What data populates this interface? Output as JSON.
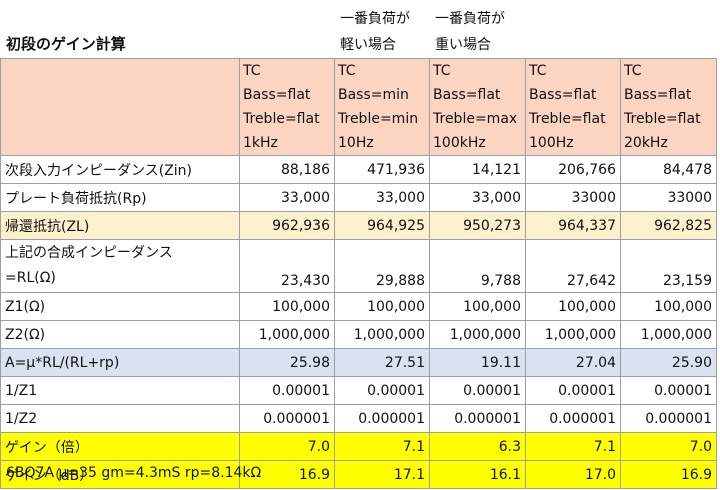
{
  "title": "初段のゲイン計算",
  "notes": [
    {
      "line1": "一番負荷が",
      "line2": "軽い場合"
    },
    {
      "line1": "一番負荷が",
      "line2": "重い場合"
    }
  ],
  "columns": [
    {
      "l1": "TC",
      "l2": " Bass=flat",
      "l3": "Treble=flat",
      "l4": "1kHz"
    },
    {
      "l1": "TC",
      "l2": " Bass=min",
      "l3": "Treble=min",
      "l4": "10Hz"
    },
    {
      "l1": "TC",
      "l2": " Bass=flat",
      "l3": "Treble=max",
      "l4": "100kHz"
    },
    {
      "l1": "TC",
      "l2": " Bass=flat",
      "l3": "Treble=flat",
      "l4": "100Hz"
    },
    {
      "l1": "TC",
      "l2": " Bass=flat",
      "l3": "Treble=flat",
      "l4": "20kHz"
    }
  ],
  "rows": {
    "zin": {
      "label": "次段入力インピーダンス(Zin)",
      "values": [
        "88,186",
        "471,936",
        "14,121",
        "206,766",
        "84,478"
      ]
    },
    "rp": {
      "label": "プレート負荷抵抗(Rp)",
      "values": [
        "33,000",
        "33,000",
        "33,000",
        "33000",
        "33000"
      ]
    },
    "zl": {
      "label": "帰還抵抗(ZL)",
      "values": [
        "962,936",
        "964,925",
        "950,273",
        "964,337",
        "962,825"
      ]
    },
    "rl": {
      "label1": "上記の合成インピーダンス",
      "label2": "=RL(Ω)",
      "values": [
        "23,430",
        "29,888",
        "9,788",
        "27,642",
        "23,159"
      ]
    },
    "z1": {
      "label": "Z1(Ω)",
      "values": [
        "100,000",
        "100,000",
        "100,000",
        "100,000",
        "100,000"
      ]
    },
    "z2": {
      "label": "Z2(Ω)",
      "values": [
        "1,000,000",
        "1,000,000",
        "1,000,000",
        "1,000,000",
        "1,000,000"
      ]
    },
    "a": {
      "label": "A=μ*RL/(RL+rp)",
      "values": [
        "25.98",
        "27.51",
        "19.11",
        "27.04",
        "25.90"
      ]
    },
    "inv_z1": {
      "label": "1/Z1",
      "values": [
        "0.00001",
        "0.00001",
        "0.00001",
        "0.00001",
        "0.00001"
      ]
    },
    "inv_z2": {
      "label": "1/Z2",
      "values": [
        "0.000001",
        "0.000001",
        "0.000001",
        "0.000001",
        "0.000001"
      ]
    },
    "gain_x": {
      "label": "ゲイン（倍）",
      "values": [
        "7.0",
        "7.1",
        "6.3",
        "7.1",
        "7.0"
      ]
    },
    "gain_db": {
      "label": "ゲイン（dB）",
      "values": [
        "16.9",
        "17.1",
        "16.1",
        "17.0",
        "16.9"
      ]
    }
  },
  "footer": "6BQ7A  μ=35  gm=4.3mS  rp=8.14kΩ",
  "colors": {
    "header": "#fbd5c2",
    "zl_row": "#fdf0cc",
    "a_row": "#dae1f1",
    "gain_rows": "#ffff00"
  }
}
